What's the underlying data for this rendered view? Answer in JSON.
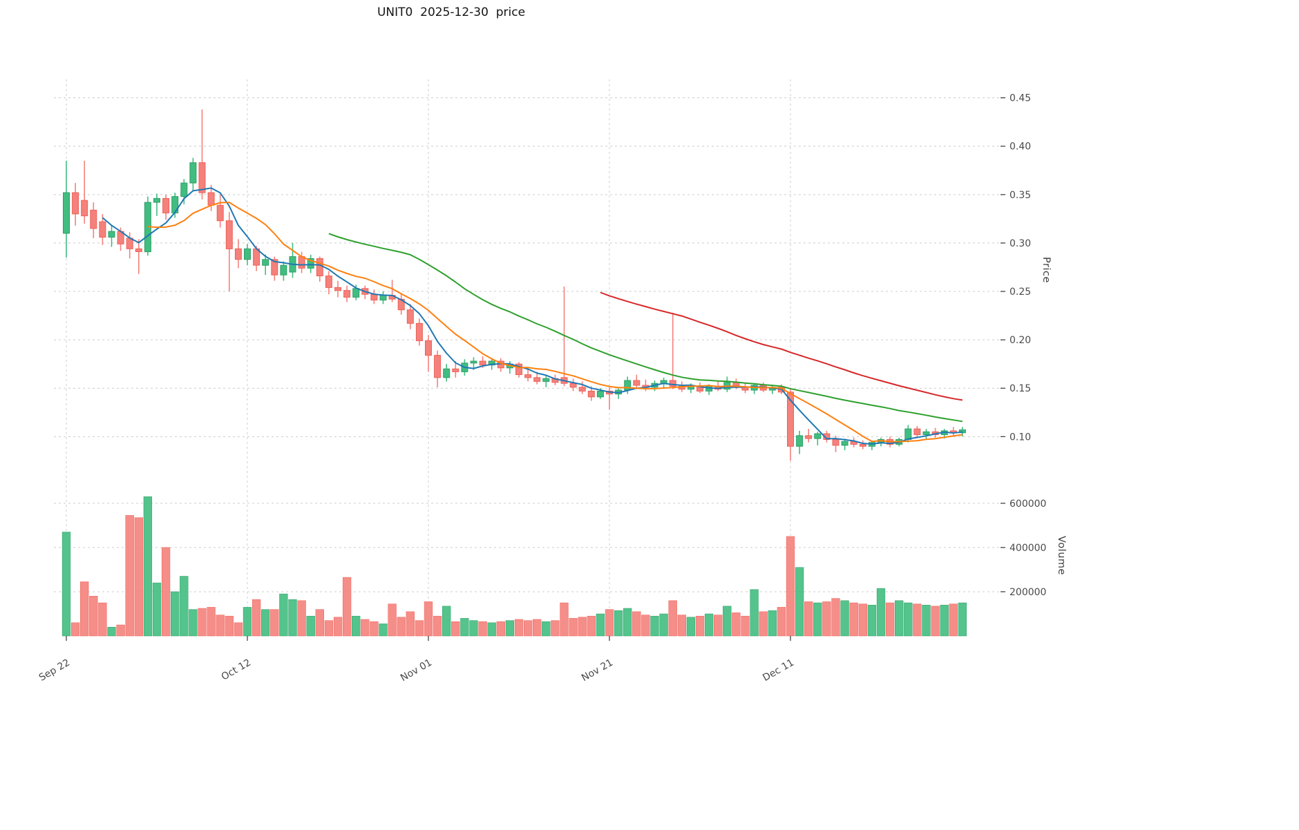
{
  "title": "UNIT0  2025-12-30  price",
  "axes": {
    "price_label": "Price",
    "volume_label": "Volume",
    "price_ticks": [
      0.45,
      0.4,
      0.35,
      0.3,
      0.25,
      0.2,
      0.15,
      0.1
    ],
    "volume_ticks": [
      600000,
      400000,
      200000
    ],
    "x_ticks": [
      {
        "index": 0,
        "label": "Sep 22"
      },
      {
        "index": 20,
        "label": "Oct 12"
      },
      {
        "index": 40,
        "label": "Nov 01"
      },
      {
        "index": 60,
        "label": "Nov 21"
      },
      {
        "index": 80,
        "label": "Dec 11"
      }
    ]
  },
  "colors": {
    "up": "#41bd80",
    "up_edge": "#2f9e68",
    "down": "#f4817b",
    "down_edge": "#ee6158",
    "grid": "#cccccc",
    "tick_text": "#4a4a4a",
    "tick_mark": "#333333"
  },
  "chart_data": {
    "type": "candlestick",
    "panels": [
      "price",
      "volume"
    ],
    "price_axis_range": [
      0.066,
      0.469
    ],
    "volume_axis_range": [
      0,
      690000
    ],
    "grid": "dashed",
    "dates": [
      "2025-09-22",
      "2025-09-23",
      "2025-09-24",
      "2025-09-25",
      "2025-09-26",
      "2025-09-27",
      "2025-09-28",
      "2025-09-29",
      "2025-09-30",
      "2025-10-01",
      "2025-10-02",
      "2025-10-03",
      "2025-10-04",
      "2025-10-05",
      "2025-10-06",
      "2025-10-07",
      "2025-10-08",
      "2025-10-09",
      "2025-10-10",
      "2025-10-11",
      "2025-10-12",
      "2025-10-13",
      "2025-10-14",
      "2025-10-15",
      "2025-10-16",
      "2025-10-17",
      "2025-10-18",
      "2025-10-19",
      "2025-10-20",
      "2025-10-21",
      "2025-10-22",
      "2025-10-23",
      "2025-10-24",
      "2025-10-25",
      "2025-10-26",
      "2025-10-27",
      "2025-10-28",
      "2025-10-29",
      "2025-10-30",
      "2025-10-31",
      "2025-11-01",
      "2025-11-02",
      "2025-11-03",
      "2025-11-04",
      "2025-11-05",
      "2025-11-06",
      "2025-11-07",
      "2025-11-08",
      "2025-11-09",
      "2025-11-10",
      "2025-11-11",
      "2025-11-12",
      "2025-11-13",
      "2025-11-14",
      "2025-11-15",
      "2025-11-16",
      "2025-11-17",
      "2025-11-18",
      "2025-11-19",
      "2025-11-20",
      "2025-11-21",
      "2025-11-22",
      "2025-11-23",
      "2025-11-24",
      "2025-11-25",
      "2025-11-26",
      "2025-11-27",
      "2025-11-28",
      "2025-11-29",
      "2025-11-30",
      "2025-12-01",
      "2025-12-02",
      "2025-12-03",
      "2025-12-04",
      "2025-12-05",
      "2025-12-06",
      "2025-12-07",
      "2025-12-08",
      "2025-12-09",
      "2025-12-10",
      "2025-12-11",
      "2025-12-12",
      "2025-12-13",
      "2025-12-14",
      "2025-12-15",
      "2025-12-16",
      "2025-12-17",
      "2025-12-18",
      "2025-12-19",
      "2025-12-20",
      "2025-12-21",
      "2025-12-22",
      "2025-12-23",
      "2025-12-24",
      "2025-12-25",
      "2025-12-26",
      "2025-12-27",
      "2025-12-28",
      "2025-12-29",
      "2025-12-30"
    ],
    "ohlc": [
      [
        0.31,
        0.385,
        0.285,
        0.352
      ],
      [
        0.352,
        0.362,
        0.318,
        0.33
      ],
      [
        0.344,
        0.385,
        0.32,
        0.328
      ],
      [
        0.334,
        0.342,
        0.305,
        0.315
      ],
      [
        0.322,
        0.33,
        0.298,
        0.306
      ],
      [
        0.306,
        0.318,
        0.296,
        0.312
      ],
      [
        0.312,
        0.316,
        0.292,
        0.299
      ],
      [
        0.305,
        0.311,
        0.284,
        0.294
      ],
      [
        0.294,
        0.304,
        0.268,
        0.291
      ],
      [
        0.291,
        0.348,
        0.287,
        0.342
      ],
      [
        0.342,
        0.351,
        0.328,
        0.346
      ],
      [
        0.346,
        0.35,
        0.324,
        0.331
      ],
      [
        0.331,
        0.352,
        0.326,
        0.348
      ],
      [
        0.348,
        0.366,
        0.34,
        0.362
      ],
      [
        0.362,
        0.388,
        0.354,
        0.383
      ],
      [
        0.383,
        0.438,
        0.345,
        0.352
      ],
      [
        0.352,
        0.36,
        0.333,
        0.339
      ],
      [
        0.339,
        0.35,
        0.316,
        0.323
      ],
      [
        0.323,
        0.332,
        0.25,
        0.294
      ],
      [
        0.294,
        0.304,
        0.274,
        0.283
      ],
      [
        0.283,
        0.299,
        0.277,
        0.294
      ],
      [
        0.294,
        0.297,
        0.271,
        0.277
      ],
      [
        0.277,
        0.288,
        0.267,
        0.283
      ],
      [
        0.283,
        0.286,
        0.261,
        0.267
      ],
      [
        0.267,
        0.281,
        0.261,
        0.277
      ],
      [
        0.27,
        0.3,
        0.264,
        0.286
      ],
      [
        0.286,
        0.291,
        0.269,
        0.274
      ],
      [
        0.274,
        0.288,
        0.269,
        0.284
      ],
      [
        0.284,
        0.286,
        0.26,
        0.266
      ],
      [
        0.266,
        0.271,
        0.247,
        0.254
      ],
      [
        0.254,
        0.261,
        0.244,
        0.251
      ],
      [
        0.251,
        0.256,
        0.239,
        0.244
      ],
      [
        0.244,
        0.257,
        0.241,
        0.253
      ],
      [
        0.253,
        0.256,
        0.242,
        0.247
      ],
      [
        0.247,
        0.252,
        0.237,
        0.241
      ],
      [
        0.241,
        0.25,
        0.237,
        0.246
      ],
      [
        0.246,
        0.262,
        0.239,
        0.242
      ],
      [
        0.242,
        0.247,
        0.226,
        0.231
      ],
      [
        0.231,
        0.237,
        0.211,
        0.217
      ],
      [
        0.217,
        0.222,
        0.194,
        0.199
      ],
      [
        0.199,
        0.205,
        0.167,
        0.184
      ],
      [
        0.184,
        0.189,
        0.151,
        0.161
      ],
      [
        0.161,
        0.175,
        0.157,
        0.17
      ],
      [
        0.17,
        0.178,
        0.161,
        0.167
      ],
      [
        0.167,
        0.18,
        0.163,
        0.176
      ],
      [
        0.176,
        0.182,
        0.169,
        0.178
      ],
      [
        0.178,
        0.183,
        0.171,
        0.174
      ],
      [
        0.174,
        0.18,
        0.169,
        0.178
      ],
      [
        0.178,
        0.181,
        0.167,
        0.171
      ],
      [
        0.171,
        0.178,
        0.165,
        0.175
      ],
      [
        0.175,
        0.177,
        0.161,
        0.164
      ],
      [
        0.164,
        0.17,
        0.157,
        0.161
      ],
      [
        0.161,
        0.167,
        0.154,
        0.157
      ],
      [
        0.157,
        0.163,
        0.151,
        0.16
      ],
      [
        0.16,
        0.164,
        0.153,
        0.156
      ],
      [
        0.161,
        0.255,
        0.152,
        0.155
      ],
      [
        0.155,
        0.16,
        0.147,
        0.151
      ],
      [
        0.151,
        0.157,
        0.144,
        0.147
      ],
      [
        0.147,
        0.152,
        0.137,
        0.141
      ],
      [
        0.141,
        0.15,
        0.139,
        0.147
      ],
      [
        0.147,
        0.151,
        0.128,
        0.144
      ],
      [
        0.144,
        0.15,
        0.139,
        0.148
      ],
      [
        0.148,
        0.162,
        0.144,
        0.158
      ],
      [
        0.158,
        0.164,
        0.149,
        0.153
      ],
      [
        0.153,
        0.159,
        0.147,
        0.151
      ],
      [
        0.151,
        0.158,
        0.147,
        0.155
      ],
      [
        0.155,
        0.161,
        0.15,
        0.158
      ],
      [
        0.158,
        0.228,
        0.149,
        0.152
      ],
      [
        0.152,
        0.157,
        0.146,
        0.149
      ],
      [
        0.149,
        0.155,
        0.145,
        0.152
      ],
      [
        0.152,
        0.156,
        0.145,
        0.147
      ],
      [
        0.147,
        0.154,
        0.143,
        0.152
      ],
      [
        0.152,
        0.157,
        0.147,
        0.149
      ],
      [
        0.149,
        0.162,
        0.146,
        0.156
      ],
      [
        0.156,
        0.16,
        0.149,
        0.151
      ],
      [
        0.151,
        0.156,
        0.145,
        0.148
      ],
      [
        0.148,
        0.155,
        0.144,
        0.153
      ],
      [
        0.153,
        0.156,
        0.146,
        0.148
      ],
      [
        0.148,
        0.153,
        0.144,
        0.151
      ],
      [
        0.151,
        0.154,
        0.144,
        0.146
      ],
      [
        0.146,
        0.149,
        0.075,
        0.09
      ],
      [
        0.09,
        0.106,
        0.082,
        0.101
      ],
      [
        0.101,
        0.108,
        0.094,
        0.098
      ],
      [
        0.098,
        0.105,
        0.091,
        0.103
      ],
      [
        0.103,
        0.106,
        0.094,
        0.097
      ],
      [
        0.097,
        0.101,
        0.084,
        0.091
      ],
      [
        0.091,
        0.098,
        0.086,
        0.095
      ],
      [
        0.095,
        0.099,
        0.089,
        0.092
      ],
      [
        0.092,
        0.096,
        0.087,
        0.09
      ],
      [
        0.09,
        0.096,
        0.086,
        0.094
      ],
      [
        0.094,
        0.099,
        0.09,
        0.097
      ],
      [
        0.097,
        0.1,
        0.089,
        0.092
      ],
      [
        0.092,
        0.099,
        0.09,
        0.097
      ],
      [
        0.097,
        0.112,
        0.094,
        0.108
      ],
      [
        0.108,
        0.111,
        0.099,
        0.102
      ],
      [
        0.102,
        0.108,
        0.097,
        0.105
      ],
      [
        0.105,
        0.109,
        0.099,
        0.102
      ],
      [
        0.102,
        0.108,
        0.098,
        0.106
      ],
      [
        0.106,
        0.11,
        0.101,
        0.104
      ],
      [
        0.104,
        0.11,
        0.1,
        0.107
      ]
    ],
    "volume": [
      470000,
      60000,
      245000,
      180000,
      150000,
      40000,
      50000,
      545000,
      535000,
      630000,
      240000,
      400000,
      200000,
      270000,
      120000,
      125000,
      130000,
      95000,
      90000,
      60000,
      130000,
      165000,
      120000,
      120000,
      190000,
      165000,
      160000,
      90000,
      120000,
      70000,
      85000,
      265000,
      90000,
      75000,
      65000,
      55000,
      145000,
      85000,
      110000,
      70000,
      155000,
      90000,
      135000,
      65000,
      80000,
      70000,
      65000,
      60000,
      65000,
      70000,
      75000,
      70000,
      75000,
      65000,
      70000,
      150000,
      80000,
      85000,
      90000,
      100000,
      120000,
      115000,
      125000,
      110000,
      95000,
      90000,
      100000,
      160000,
      95000,
      85000,
      90000,
      100000,
      95000,
      135000,
      105000,
      90000,
      210000,
      110000,
      115000,
      130000,
      450000,
      310000,
      155000,
      150000,
      155000,
      170000,
      160000,
      150000,
      145000,
      140000,
      215000,
      150000,
      160000,
      150000,
      145000,
      140000,
      135000,
      140000,
      145000,
      150000
    ],
    "moving_averages": [
      {
        "name": "MA5",
        "window": 5,
        "color": "#1f77b4"
      },
      {
        "name": "MA10",
        "window": 10,
        "color": "#ff7f0e"
      },
      {
        "name": "MA30",
        "window": 30,
        "color": "#2ca02c"
      },
      {
        "name": "MA60",
        "window": 60,
        "color": "#d62728"
      }
    ]
  }
}
